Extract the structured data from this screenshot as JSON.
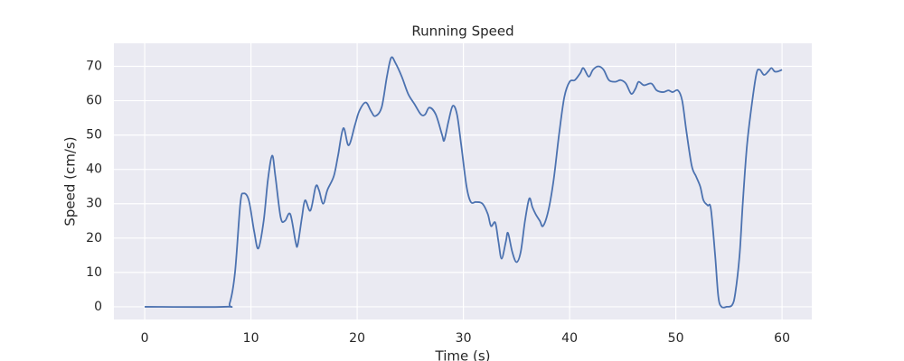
{
  "chart_data": {
    "type": "line",
    "title": "Running Speed",
    "xlabel": "Time (s)",
    "ylabel": "Speed (cm/s)",
    "x": [
      0,
      7.5,
      8,
      8.5,
      9,
      9.3,
      9.8,
      10.3,
      10.7,
      11.2,
      11.6,
      12,
      12.3,
      12.8,
      13.2,
      13.7,
      14.2,
      14.4,
      14.8,
      15.1,
      15.6,
      16.1,
      16.4,
      16.8,
      17.2,
      17.8,
      18.2,
      18.7,
      19.2,
      19.8,
      20.2,
      20.8,
      21.3,
      21.7,
      22.3,
      22.8,
      23.2,
      23.6,
      24.2,
      24.8,
      25.4,
      26,
      26.4,
      26.8,
      27.4,
      28,
      28.2,
      28.6,
      29,
      29.4,
      29.8,
      30.3,
      30.7,
      31.2,
      31.8,
      32.3,
      32.6,
      33,
      33.3,
      33.6,
      34,
      34.2,
      34.6,
      35,
      35.4,
      35.8,
      36.2,
      36.5,
      36.8,
      37.2,
      37.5,
      38,
      38.5,
      39,
      39.5,
      40,
      40.5,
      41,
      41.3,
      41.8,
      42.2,
      42.7,
      43.2,
      43.7,
      44.3,
      44.8,
      45.3,
      45.8,
      46.2,
      46.5,
      47,
      47.7,
      48.2,
      48.8,
      49.3,
      49.7,
      50.2,
      50.6,
      51,
      51.5,
      51.9,
      52.3,
      52.6,
      53,
      53.3,
      53.7,
      54,
      54.3,
      54.8,
      55.3,
      55.6,
      56,
      56.3,
      56.7,
      57.2,
      57.6,
      57.9,
      58.3,
      58.7,
      59,
      59.3,
      59.6,
      60
    ],
    "values": [
      0,
      0,
      1,
      10,
      30,
      33,
      31,
      22,
      17,
      25,
      37,
      44,
      38,
      26,
      25,
      27,
      19,
      18,
      26,
      31,
      28,
      35,
      34,
      30,
      34,
      38,
      44,
      52,
      47,
      53,
      57,
      59.5,
      57,
      55.5,
      58,
      67,
      72.5,
      71,
      67,
      62,
      59,
      56,
      56,
      58,
      56,
      50,
      48.5,
      54,
      58.5,
      56,
      47,
      35,
      30.5,
      30.5,
      30,
      27,
      23.5,
      24.5,
      19,
      14,
      19,
      21.5,
      16,
      13,
      16,
      25,
      31.5,
      29,
      27,
      25,
      23.5,
      28,
      37,
      50,
      61,
      65.5,
      66,
      68,
      69.5,
      67,
      69,
      70,
      69,
      66,
      65.5,
      66,
      65,
      62,
      63.5,
      65.5,
      64.5,
      65,
      63,
      62.5,
      63,
      62.5,
      63,
      60,
      51,
      41,
      38,
      35,
      31,
      29.5,
      28.5,
      15,
      3,
      0,
      0,
      0.5,
      4,
      15,
      30,
      47,
      60,
      68,
      69,
      67.5,
      68.5,
      69.5,
      68.5,
      68.5,
      69
    ],
    "color": "#4c72b0",
    "xlim": [
      -2.9,
      62.8
    ],
    "ylim": [
      -3.7,
      76.7
    ],
    "xticks": [
      0,
      10,
      20,
      30,
      40,
      50,
      60
    ],
    "yticks": [
      0,
      10,
      20,
      30,
      40,
      50,
      60,
      70
    ],
    "grid": true
  }
}
